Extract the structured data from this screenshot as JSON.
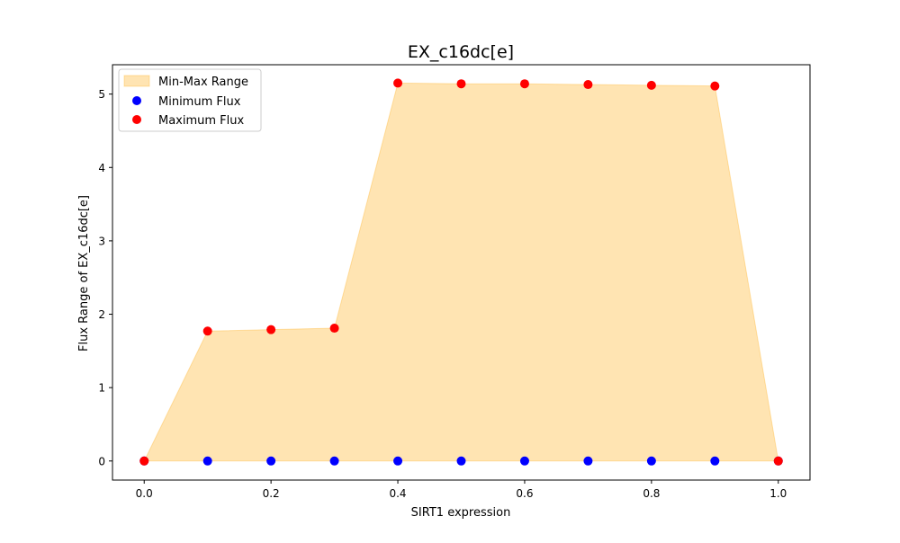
{
  "chart_data": {
    "type": "scatter",
    "title": "EX_c16dc[e]",
    "xlabel": "SIRT1 expression",
    "ylabel": "Flux Range of EX_c16dc[e]",
    "xlim": [
      -0.05,
      1.05
    ],
    "ylim": [
      -0.26,
      5.4
    ],
    "xticks": [
      0.0,
      0.2,
      0.4,
      0.6,
      0.8,
      1.0
    ],
    "xtick_labels": [
      "0.0",
      "0.2",
      "0.4",
      "0.6",
      "0.8",
      "1.0"
    ],
    "yticks": [
      0,
      1,
      2,
      3,
      4,
      5
    ],
    "ytick_labels": [
      "0",
      "1",
      "2",
      "3",
      "4",
      "5"
    ],
    "grid": false,
    "legend_position": "top-left",
    "x": [
      0.0,
      0.1,
      0.2,
      0.3,
      0.4,
      0.5,
      0.6,
      0.7,
      0.8,
      0.9,
      1.0
    ],
    "series": [
      {
        "name": "Min-Max Range",
        "kind": "fill_between",
        "color": "#ffa500",
        "opacity": 0.3
      },
      {
        "name": "Minimum Flux",
        "kind": "scatter",
        "color": "#0000ff",
        "values": [
          0,
          0,
          0,
          0,
          0,
          0,
          0,
          0,
          0,
          0,
          0
        ]
      },
      {
        "name": "Maximum Flux",
        "kind": "scatter",
        "color": "#ff0000",
        "values": [
          0,
          1.77,
          1.79,
          1.81,
          5.15,
          5.14,
          5.14,
          5.13,
          5.12,
          5.11,
          0
        ]
      }
    ]
  }
}
